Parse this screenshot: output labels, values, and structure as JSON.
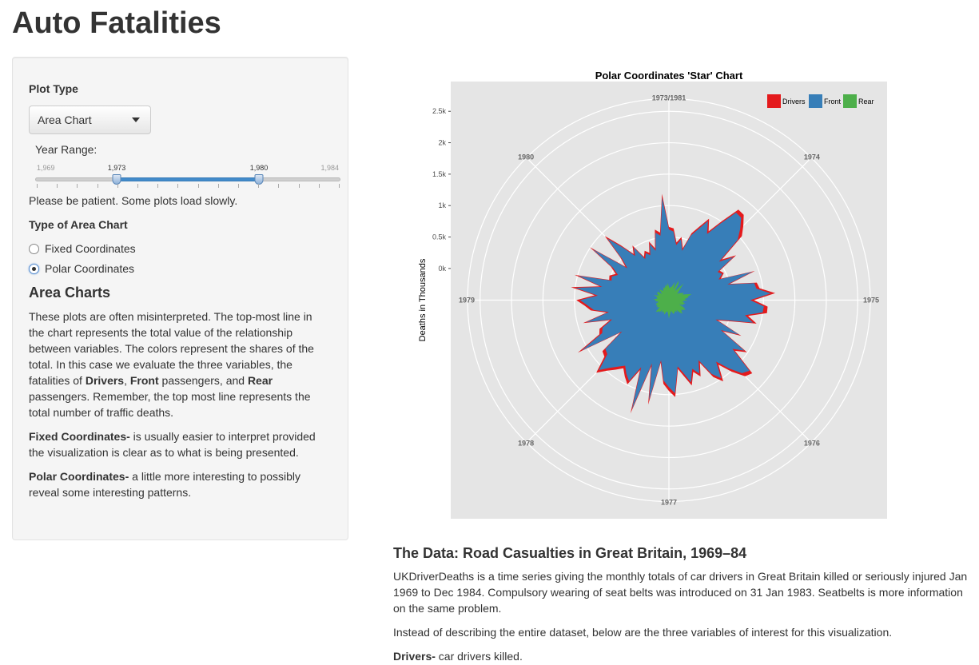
{
  "app_title": "Auto Fatalities",
  "sidebar": {
    "plot_type_label": "Plot Type",
    "plot_type_value": "Area Chart",
    "year_range_label": "Year Range:",
    "year_min": "1,969",
    "year_max": "1,984",
    "year_from": "1,973",
    "year_to": "1,980",
    "year_from_fraction": 0.267,
    "year_to_fraction": 0.733,
    "patience_note": "Please be patient. Some plots load slowly.",
    "area_type_label": "Type of Area Chart",
    "radio_fixed": "Fixed Coordinates",
    "radio_polar": "Polar Coordinates",
    "selected_radio": "Polar Coordinates",
    "area_heading": "Area Charts",
    "desc1_a": "These plots are often misinterpreted. The top-most line in the chart represents the total value of the relationship between variables. The colors represent the shares of the total. In this case we evaluate the three variables, the fatalities of ",
    "desc1_drivers": "Drivers",
    "desc1_b": ", ",
    "desc1_front": "Front",
    "desc1_c": " passengers, and ",
    "desc1_rear": "Rear",
    "desc1_d": " passengers. Remember, the top most line represents the total number of traffic deaths.",
    "fixed_term": "Fixed Coordinates-",
    "fixed_desc": " is usually easier to interpret provided the visualization is clear as to what is being presented.",
    "polar_term": "Polar Coordinates-",
    "polar_desc": " a little more interesting to possibly reveal some interesting patterns."
  },
  "chart_data": {
    "type": "area",
    "coordinates": "polar",
    "title": "Polar Coordinates 'Star' Chart",
    "ylabel": "Deaths in Thousands",
    "y_tick_labels": [
      "0k",
      "0.5k",
      "1k",
      "1.5k",
      "2k",
      "2.5k"
    ],
    "y_ticks": [
      0,
      500,
      1000,
      1500,
      2000,
      2500
    ],
    "y_range": [
      -1000,
      2700
    ],
    "x_tick_labels": [
      "1973/1981",
      "1974",
      "1975",
      "1976",
      "1977",
      "1978",
      "1979",
      "1980"
    ],
    "legend_position": "top-right",
    "series": [
      {
        "name": "Drivers",
        "color": "#e41a1c"
      },
      {
        "name": "Front",
        "color": "#377eb8"
      },
      {
        "name": "Rear",
        "color": "#4daf4a"
      }
    ],
    "months": 96,
    "rear_values": [
      -290,
      -320,
      -290,
      -290,
      -250,
      -200,
      -320,
      -160,
      -200,
      -330,
      -280,
      -150,
      -250,
      -300,
      -340,
      -300,
      -280,
      -240,
      -270,
      -220,
      -130,
      -190,
      -200,
      -260,
      -210,
      -280,
      -280,
      -240,
      -270,
      -260,
      -330,
      -240,
      -200,
      -230,
      -250,
      -240,
      -200,
      -240,
      -310,
      -270,
      -310,
      -290,
      -280,
      -270,
      -300,
      -330,
      -300,
      -280,
      -210,
      -290,
      -320,
      -320,
      -290,
      -260,
      -300,
      -300,
      -270,
      -320,
      -260,
      -270,
      -240,
      -230,
      -320,
      -300,
      -280,
      -310,
      -280,
      -300,
      -290,
      -330,
      -330,
      -280,
      -300,
      -250,
      -320,
      -310,
      -300,
      -250,
      -310,
      -320,
      -280,
      -290,
      -280,
      -360,
      -320,
      -280,
      -300,
      -330,
      -320,
      -310,
      -280,
      -300,
      -280,
      -250,
      -290,
      -230
    ],
    "front_values": [
      620,
      590,
      380,
      480,
      310,
      580,
      720,
      900,
      710,
      950,
      1250,
      1240,
      1100,
      950,
      500,
      730,
      390,
      440,
      350,
      900,
      460,
      880,
      900,
      1120,
      790,
      1010,
      1000,
      730,
      880,
      500,
      300,
      740,
      450,
      940,
      770,
      1200,
      1140,
      940,
      730,
      990,
      850,
      560,
      760,
      650,
      850,
      680,
      560,
      980,
      880,
      780,
      460,
      1120,
      540,
      1330,
      650,
      930,
      850,
      750,
      830,
      930,
      1070,
      800,
      770,
      390,
      1100,
      680,
      640,
      450,
      860,
      470,
      700,
      790,
      910,
      630,
      1000,
      580,
      990,
      460,
      480,
      400,
      520,
      950,
      330,
      480,
      880,
      610,
      380,
      500,
      250,
      330,
      270,
      440,
      310,
      590,
      530,
      1130
    ],
    "drivers_values": [
      660,
      640,
      420,
      520,
      350,
      620,
      760,
      940,
      760,
      1000,
      1310,
      1300,
      1170,
      1040,
      560,
      780,
      430,
      470,
      390,
      940,
      500,
      920,
      950,
      1190,
      850,
      1070,
      1070,
      780,
      940,
      550,
      340,
      780,
      490,
      990,
      820,
      1260,
      1210,
      1010,
      790,
      1050,
      910,
      610,
      810,
      700,
      900,
      730,
      600,
      1040,
      940,
      830,
      500,
      1190,
      590,
      1400,
      700,
      990,
      900,
      800,
      890,
      990,
      1130,
      860,
      830,
      430,
      1170,
      730,
      690,
      490,
      910,
      510,
      750,
      840,
      970,
      680,
      1070,
      620,
      1050,
      500,
      520,
      440,
      560,
      1010,
      370,
      520,
      940,
      660,
      420,
      540,
      290,
      370,
      310,
      480,
      350,
      640,
      580,
      1190
    ]
  },
  "data_section": {
    "heading": "The Data: Road Casualties in Great Britain, 1969–84",
    "para1": "UKDriverDeaths is a time series giving the monthly totals of car drivers in Great Britain killed or seriously injured Jan 1969 to Dec 1984. Compulsory wearing of seat belts was introduced on 31 Jan 1983. Seatbelts is more information on the same problem.",
    "para2": "Instead of describing the entire dataset, below are the three variables of interest for this visualization.",
    "drivers_term": "Drivers-",
    "drivers_desc": " car drivers killed."
  }
}
